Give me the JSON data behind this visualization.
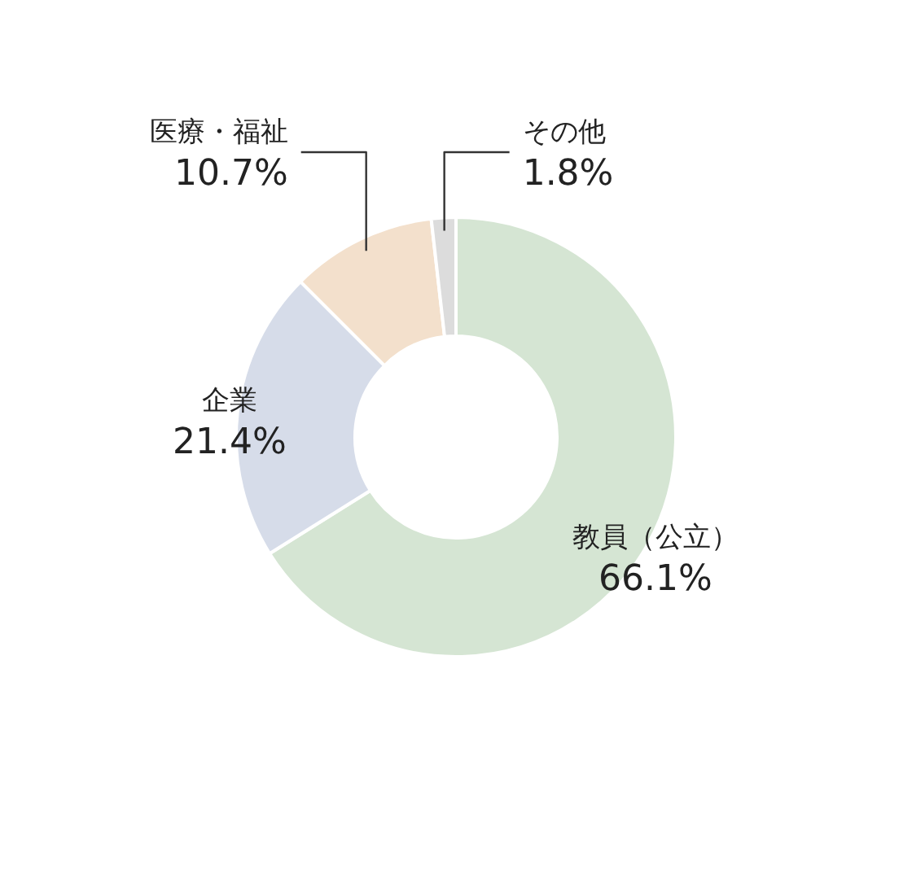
{
  "chart_data": {
    "type": "donut",
    "categories": [
      "教員（公立）",
      "企業",
      "医療・福祉",
      "その他"
    ],
    "values": [
      66.1,
      21.4,
      10.7,
      1.8
    ],
    "colors": [
      "#d5e5d3",
      "#d6dce9",
      "#f3e0cc",
      "#dcdcdc"
    ],
    "value_labels": [
      "66.1%",
      "21.4%",
      "10.7%",
      "1.8%"
    ]
  }
}
